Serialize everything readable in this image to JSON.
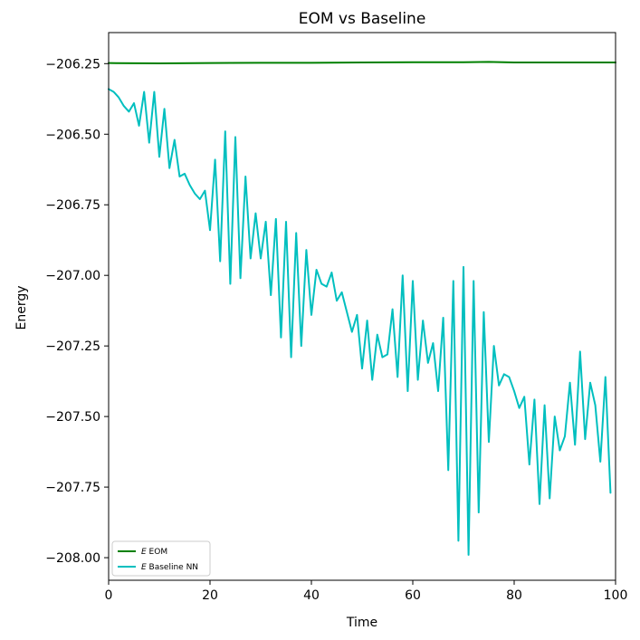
{
  "chart_data": {
    "type": "line",
    "title": "EOM vs Baseline",
    "xlabel": "Time",
    "ylabel": "Energy",
    "xlim": [
      0,
      100
    ],
    "ylim": [
      -208.08,
      -206.14
    ],
    "xticks": [
      0,
      20,
      40,
      60,
      80,
      100
    ],
    "xtick_labels": [
      "0",
      "20",
      "40",
      "60",
      "80",
      "100"
    ],
    "yticks": [
      -206.25,
      -206.5,
      -206.75,
      -207.0,
      -207.25,
      -207.5,
      -207.75,
      -208.0
    ],
    "ytick_labels": [
      "−206.25",
      "−206.50",
      "−206.75",
      "−207.00",
      "−207.25",
      "−207.50",
      "−207.75",
      "−208.00"
    ],
    "grid": false,
    "legend_position": "lower-left",
    "legend": [
      {
        "italic": "E",
        "text": " EOM"
      },
      {
        "italic": "E",
        "text": " Baseline NN"
      }
    ],
    "series": [
      {
        "name": "E EOM",
        "color": "#008000",
        "x": [
          0,
          10,
          20,
          30,
          40,
          50,
          60,
          70,
          75,
          80,
          90,
          100
        ],
        "y": [
          -206.248,
          -206.249,
          -206.248,
          -206.247,
          -206.247,
          -206.246,
          -206.245,
          -206.245,
          -206.244,
          -206.246,
          -206.246,
          -206.246
        ]
      },
      {
        "name": "E Baseline NN",
        "color": "#00BFBF",
        "x": [
          0,
          1,
          2,
          3,
          4,
          5,
          6,
          7,
          8,
          9,
          10,
          11,
          12,
          13,
          14,
          15,
          16,
          17,
          18,
          19,
          20,
          21,
          22,
          23,
          24,
          25,
          26,
          27,
          28,
          29,
          30,
          31,
          32,
          33,
          34,
          35,
          36,
          37,
          38,
          39,
          40,
          41,
          42,
          43,
          44,
          45,
          46,
          47,
          48,
          49,
          50,
          51,
          52,
          53,
          54,
          55,
          56,
          57,
          58,
          59,
          60,
          61,
          62,
          63,
          64,
          65,
          66,
          67,
          68,
          69,
          70,
          71,
          72,
          73,
          74,
          75,
          76,
          77,
          78,
          79,
          80,
          81,
          82,
          83,
          84,
          85,
          86,
          87,
          88,
          89,
          90,
          91,
          92,
          93,
          94,
          95,
          96,
          97,
          98,
          99
        ],
        "y": [
          -206.34,
          -206.35,
          -206.37,
          -206.4,
          -206.42,
          -206.39,
          -206.47,
          -206.35,
          -206.53,
          -206.35,
          -206.58,
          -206.41,
          -206.62,
          -206.52,
          -206.65,
          -206.64,
          -206.68,
          -206.71,
          -206.73,
          -206.7,
          -206.84,
          -206.59,
          -206.95,
          -206.49,
          -207.03,
          -206.51,
          -207.01,
          -206.65,
          -206.94,
          -206.78,
          -206.94,
          -206.81,
          -207.07,
          -206.8,
          -207.22,
          -206.81,
          -207.29,
          -206.85,
          -207.25,
          -206.91,
          -207.14,
          -206.98,
          -207.03,
          -207.04,
          -206.99,
          -207.09,
          -207.06,
          -207.13,
          -207.2,
          -207.14,
          -207.33,
          -207.16,
          -207.37,
          -207.21,
          -207.29,
          -207.28,
          -207.12,
          -207.36,
          -207.0,
          -207.41,
          -207.02,
          -207.37,
          -207.16,
          -207.31,
          -207.24,
          -207.41,
          -207.15,
          -207.69,
          -207.02,
          -207.94,
          -206.97,
          -207.99,
          -207.02,
          -207.84,
          -207.13,
          -207.59,
          -207.25,
          -207.39,
          -207.35,
          -207.36,
          -207.41,
          -207.47,
          -207.43,
          -207.67,
          -207.44,
          -207.81,
          -207.46,
          -207.79,
          -207.5,
          -207.62,
          -207.57,
          -207.38,
          -207.6,
          -207.27,
          -207.58,
          -207.38,
          -207.46,
          -207.66,
          -207.36,
          -207.77
        ]
      }
    ]
  }
}
